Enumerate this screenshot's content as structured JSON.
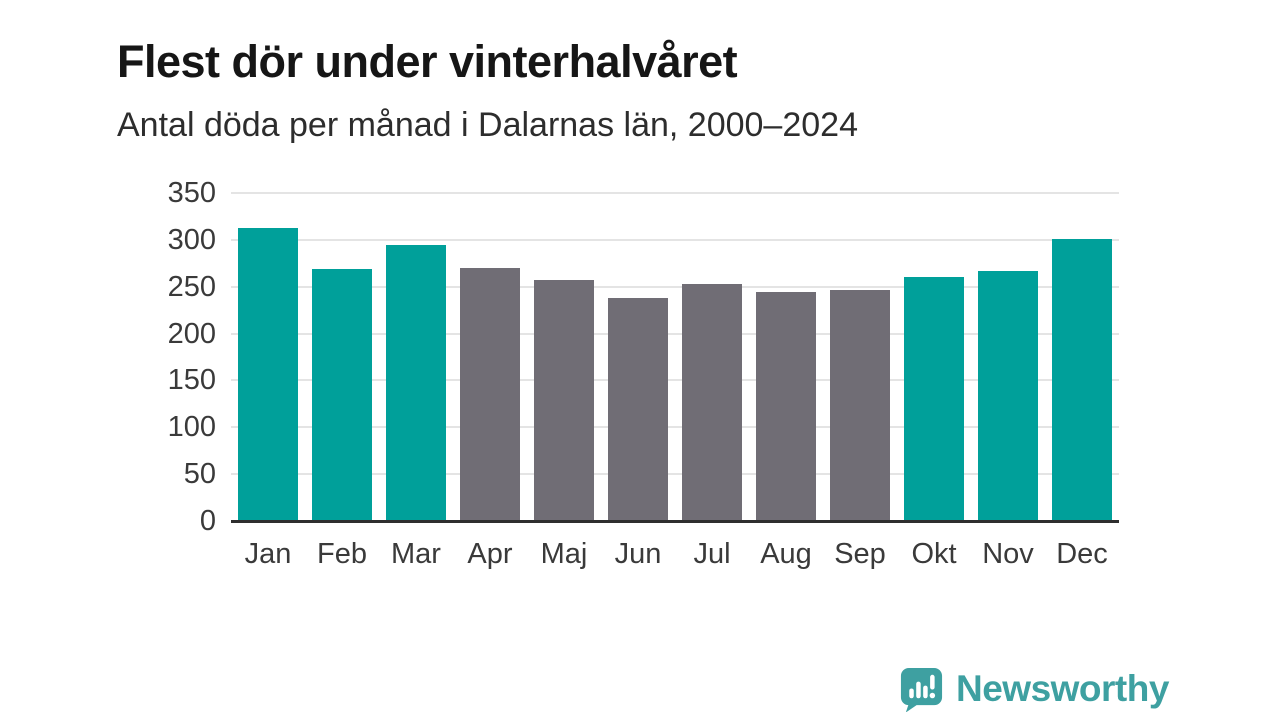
{
  "header": {
    "title": "Flest dör under vinterhalvåret",
    "subtitle": "Antal döda per månad i Dalarnas län, 2000–2024"
  },
  "chart_data": {
    "type": "bar",
    "title": "Flest dör under vinterhalvåret",
    "subtitle": "Antal döda per månad i Dalarnas län, 2000–2024",
    "categories": [
      "Jan",
      "Feb",
      "Mar",
      "Apr",
      "Maj",
      "Jun",
      "Jul",
      "Aug",
      "Sep",
      "Okt",
      "Nov",
      "Dec"
    ],
    "values": [
      313,
      269,
      295,
      270,
      257,
      238,
      253,
      244,
      247,
      260,
      267,
      301
    ],
    "highlighted": [
      true,
      true,
      true,
      false,
      false,
      false,
      false,
      false,
      false,
      true,
      true,
      true
    ],
    "xlabel": "",
    "ylabel": "",
    "ylim": [
      0,
      350
    ],
    "yticks": [
      0,
      50,
      100,
      150,
      200,
      250,
      300,
      350
    ],
    "grid": true,
    "legend": "none",
    "colors": {
      "highlight": "#00a09a",
      "base": "#706d75",
      "gridline": "#e4e4e4",
      "axis_line": "#2e2e2e",
      "tick_label": "#3a3a3a"
    }
  },
  "footer": {
    "brand": "Newsworthy",
    "brand_color": "#3ea0a1",
    "logo_icon": "newsworthy-speech-bubble-bar-chart-icon"
  }
}
